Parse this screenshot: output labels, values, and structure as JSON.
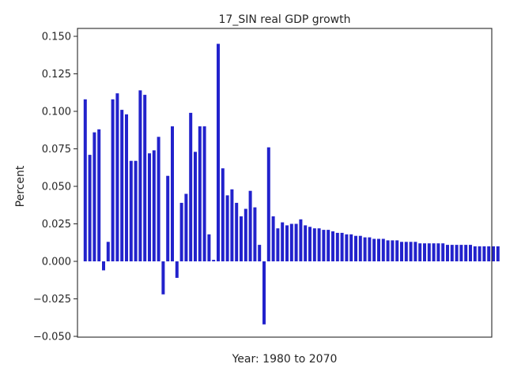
{
  "chart_data": {
    "type": "bar",
    "title": "17_SIN real GDP growth",
    "xlabel": "Year: 1980 to 2070",
    "ylabel": "Percent",
    "ylim": [
      -0.05,
      0.155
    ],
    "yticks": [
      "0.150",
      "0.125",
      "0.100",
      "0.075",
      "0.050",
      "0.025",
      "0.000",
      "−0.025",
      "−0.050"
    ],
    "ytick_values": [
      0.15,
      0.125,
      0.1,
      0.075,
      0.05,
      0.025,
      0.0,
      -0.025,
      -0.05
    ],
    "grid": false,
    "bar_color": "#2222cc",
    "x": [
      1980,
      1981,
      1982,
      1983,
      1984,
      1985,
      1986,
      1987,
      1988,
      1989,
      1990,
      1991,
      1992,
      1993,
      1994,
      1995,
      1996,
      1997,
      1998,
      1999,
      2000,
      2001,
      2002,
      2003,
      2004,
      2005,
      2006,
      2007,
      2008,
      2009,
      2010,
      2011,
      2012,
      2013,
      2014,
      2015,
      2016,
      2017,
      2018,
      2019,
      2020,
      2021,
      2022,
      2023,
      2024,
      2025,
      2026,
      2027,
      2028,
      2029,
      2030,
      2031,
      2032,
      2033,
      2034,
      2035,
      2036,
      2037,
      2038,
      2039,
      2040,
      2041,
      2042,
      2043,
      2044,
      2045,
      2046,
      2047,
      2048,
      2049,
      2050,
      2051,
      2052,
      2053,
      2054,
      2055,
      2056,
      2057,
      2058,
      2059,
      2060,
      2061,
      2062,
      2063,
      2064,
      2065,
      2066,
      2067,
      2068,
      2069,
      2070
    ],
    "values": [
      0.108,
      0.071,
      0.086,
      0.088,
      -0.006,
      0.013,
      0.108,
      0.112,
      0.101,
      0.098,
      0.067,
      0.067,
      0.114,
      0.111,
      0.072,
      0.074,
      0.083,
      -0.022,
      0.057,
      0.09,
      -0.011,
      0.039,
      0.045,
      0.099,
      0.073,
      0.09,
      0.09,
      0.018,
      0.001,
      0.145,
      0.062,
      0.044,
      0.048,
      0.039,
      0.03,
      0.035,
      0.047,
      0.036,
      0.011,
      -0.042,
      0.076,
      0.03,
      0.022,
      0.026,
      0.024,
      0.025,
      0.025,
      0.028,
      0.024,
      0.023,
      0.022,
      0.022,
      0.021,
      0.021,
      0.02,
      0.019,
      0.019,
      0.018,
      0.018,
      0.017,
      0.017,
      0.016,
      0.016,
      0.015,
      0.015,
      0.015,
      0.014,
      0.014,
      0.014,
      0.013,
      0.013,
      0.013,
      0.013,
      0.012,
      0.012,
      0.012,
      0.012,
      0.012,
      0.012,
      0.011,
      0.011,
      0.011,
      0.011,
      0.011,
      0.011,
      0.01,
      0.01,
      0.01,
      0.01,
      0.01,
      0.01
    ]
  }
}
